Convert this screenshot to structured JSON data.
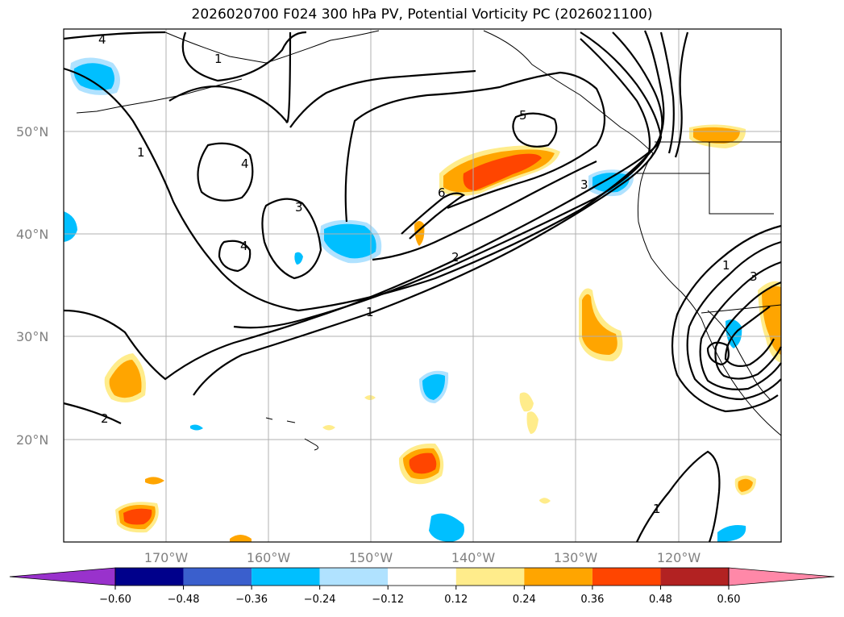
{
  "title": "2026020700 F024 300 hPa PV, Potential Vorticity PC (2026021100)",
  "lat_labels": [
    "50°N",
    "40°N",
    "30°N",
    "20°N"
  ],
  "lon_labels": [
    "170°W",
    "160°W",
    "150°W",
    "140°W",
    "130°W",
    "120°W"
  ],
  "colorbar": {
    "ticks": [
      "−0.60",
      "−0.48",
      "−0.36",
      "−0.24",
      "−0.12",
      "0.12",
      "0.24",
      "0.36",
      "0.48",
      "0.60"
    ],
    "colors": [
      "#9932cc",
      "#00008b",
      "#3a5fcd",
      "#00bfff",
      "#b0e2ff",
      "#ffffff",
      "#ffec8b",
      "#ffa500",
      "#ff4500",
      "#b22222",
      "#ff88a8"
    ]
  },
  "contour_labels": [
    "4",
    "1",
    "1",
    "4",
    "3",
    "4",
    "5",
    "6",
    "3",
    "2",
    "1",
    "1",
    "3",
    "2",
    "1"
  ],
  "colors": {
    "negative_light": "#b0e2ff",
    "negative_mid": "#00bfff",
    "positive_light": "#ffec8b",
    "positive_mid": "#ffa500",
    "positive_strong": "#ff4500"
  }
}
